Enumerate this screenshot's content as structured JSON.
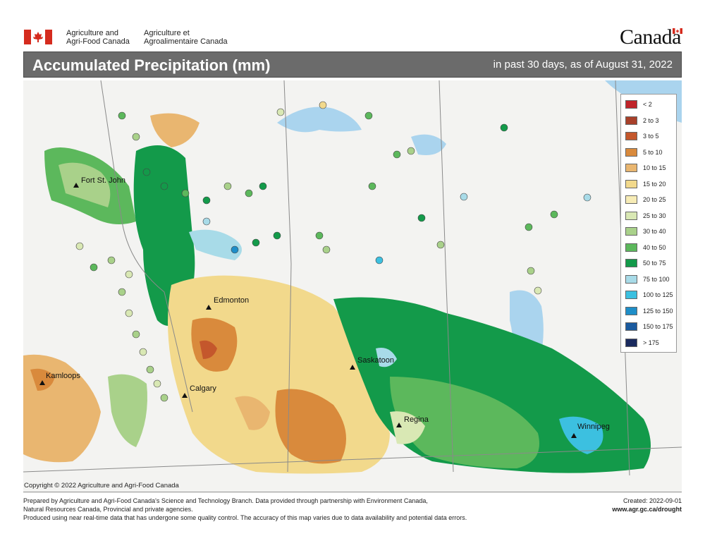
{
  "header": {
    "department_en_line1": "Agriculture and",
    "department_en_line2": "Agri-Food Canada",
    "department_fr_line1": "Agriculture et",
    "department_fr_line2": "Agroalimentaire Canada",
    "wordmark": "Canada",
    "flag_color": "#d52b1e"
  },
  "title": "Accumulated Precipitation (mm)",
  "subtitle": "in past 30 days, as of August 31, 2022",
  "legend": [
    {
      "label": "< 2",
      "color": "#c0242a"
    },
    {
      "label": "2 to 3",
      "color": "#a8402a"
    },
    {
      "label": "3 to 5",
      "color": "#c4572c"
    },
    {
      "label": "5 to 10",
      "color": "#d98a3c"
    },
    {
      "label": "10 to 15",
      "color": "#e9b670"
    },
    {
      "label": "15 to 20",
      "color": "#f2d98c"
    },
    {
      "label": "20 to 25",
      "color": "#f7ecb6"
    },
    {
      "label": "25 to 30",
      "color": "#d9e8b4"
    },
    {
      "label": "30 to 40",
      "color": "#a9d18a"
    },
    {
      "label": "40 to 50",
      "color": "#5cb85c"
    },
    {
      "label": "50 to 75",
      "color": "#139a4a"
    },
    {
      "label": "75 to 100",
      "color": "#a8dbe8"
    },
    {
      "label": "100 to 125",
      "color": "#3cc0e0"
    },
    {
      "label": "125 to 150",
      "color": "#1e8ec8"
    },
    {
      "label": "150 to 175",
      "color": "#1b5a9e"
    },
    {
      "label": "> 175",
      "color": "#1a2a5e"
    }
  ],
  "cities": [
    {
      "name": "Fort St. John"
    },
    {
      "name": "Edmonton"
    },
    {
      "name": "Kamloops"
    },
    {
      "name": "Calgary"
    },
    {
      "name": "Saskatoon"
    },
    {
      "name": "Regina"
    },
    {
      "name": "Winnipeg"
    }
  ],
  "copyright": "Copyright © 2022 Agriculture and Agri-Food Canada",
  "footer": {
    "line1": "Prepared by Agriculture and Agri-Food Canada's Science and Technology Branch. Data provided through partnership with Environment Canada,",
    "line2": "Natural Resources Canada, Provincial and private agencies.",
    "line3": "Produced using near real-time data that has undergone some quality control. The accuracy of this map varies due to data availability and potential data errors.",
    "created": "Created: 2022-09-01",
    "url": "www.agr.gc.ca/drought"
  }
}
